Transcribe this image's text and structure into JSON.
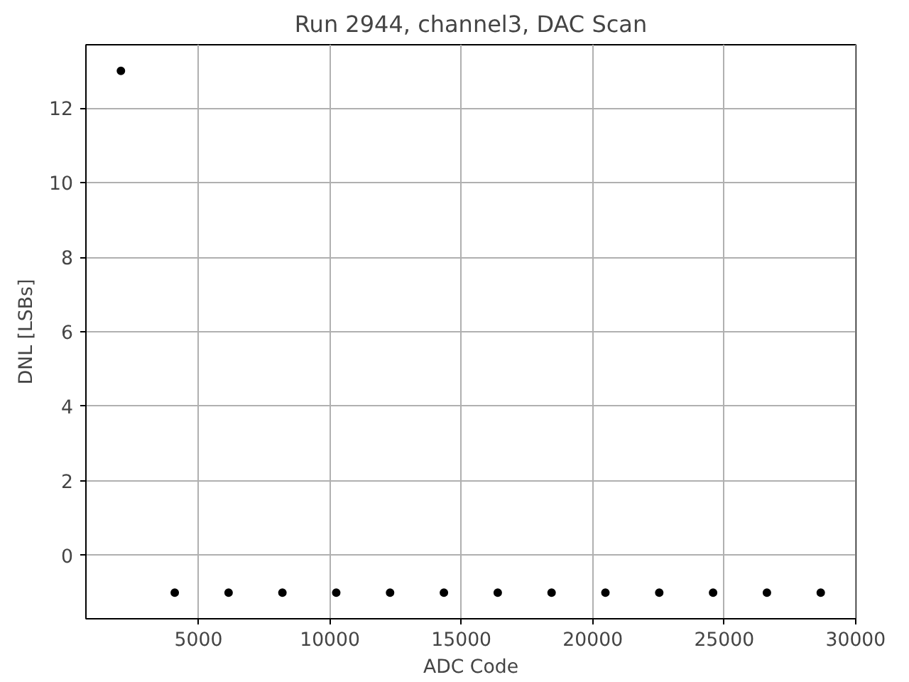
{
  "chart_data": {
    "type": "scatter",
    "title": "Run 2944, channel3, DAC Scan",
    "xlabel": "ADC Code",
    "ylabel": "DNL [LSBs]",
    "x": [
      2048,
      4096,
      6144,
      8192,
      10240,
      12288,
      14336,
      16384,
      18432,
      20480,
      22528,
      24576,
      26624,
      28672
    ],
    "series": [
      {
        "color": "#000000",
        "values": [
          13,
          -1,
          -1,
          -1,
          -1,
          -1,
          -1,
          -1,
          -1,
          -1,
          -1,
          -1,
          -1,
          -1
        ]
      }
    ],
    "xlim": [
      717,
      30003
    ],
    "ylim": [
      -1.7,
      13.7
    ],
    "xticks": [
      5000,
      10000,
      15000,
      20000,
      25000,
      30000
    ],
    "yticks": [
      0,
      2,
      4,
      6,
      8,
      10,
      12
    ],
    "grid": true,
    "marker": "circle"
  }
}
